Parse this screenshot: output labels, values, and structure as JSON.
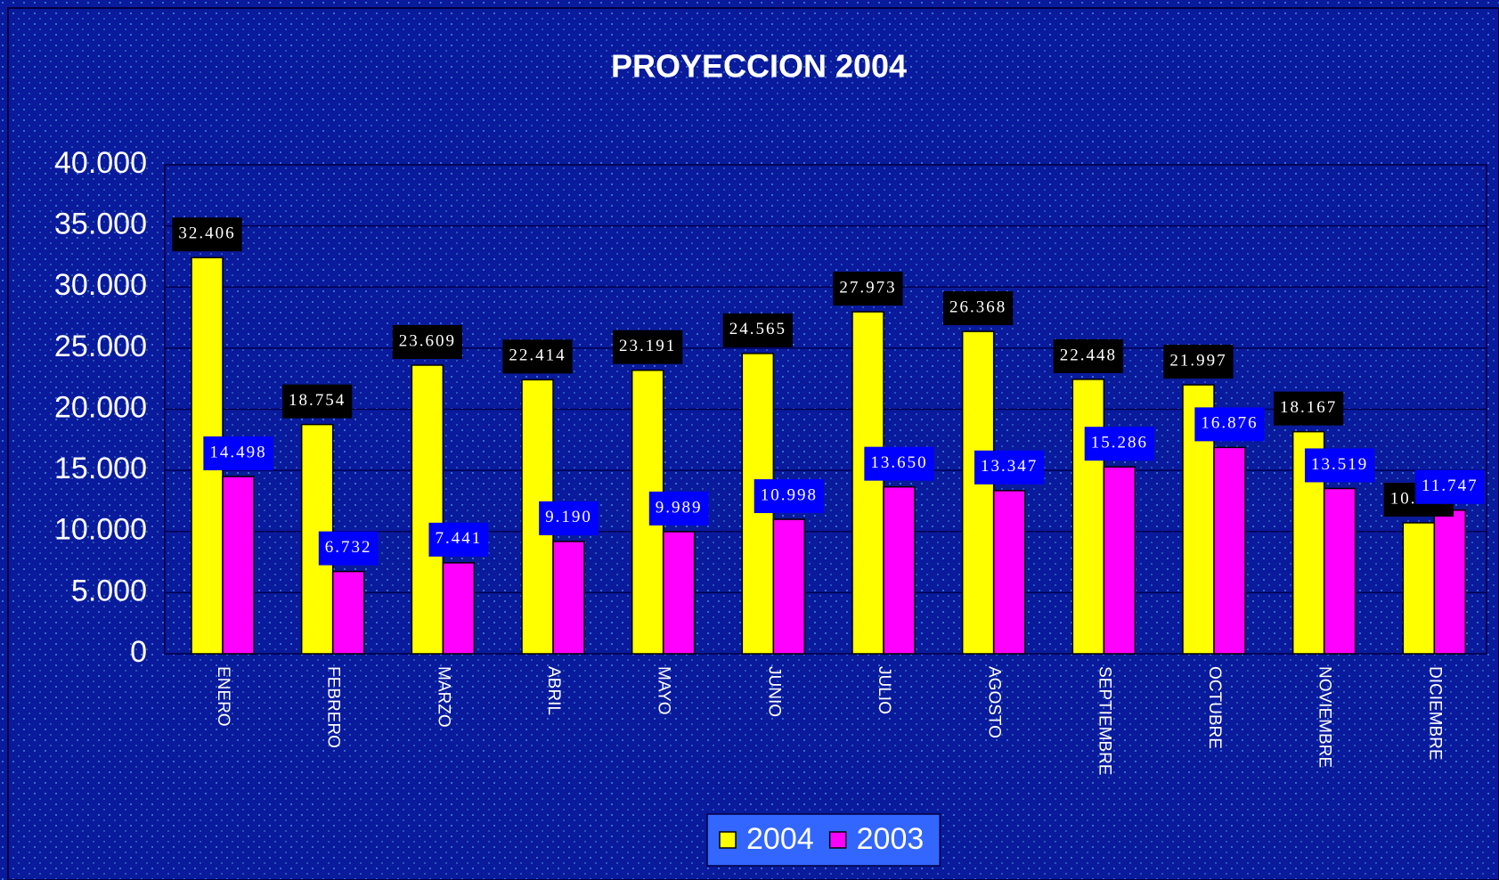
{
  "chart_data": {
    "type": "bar",
    "title": "PROYECCION 2004",
    "categories": [
      "ENERO",
      "FEBRERO",
      "MARZO",
      "ABRIL",
      "MAYO",
      "JUNIO",
      "JULIO",
      "AGOSTO",
      "SEPTIEMBRE",
      "OCTUBRE",
      "NOVIEMBRE",
      "DICIEMBRE"
    ],
    "series": [
      {
        "name": "2004",
        "color": "#ffff00",
        "label_box": "#000000",
        "values": [
          32406,
          18754,
          23609,
          22414,
          23191,
          24565,
          27973,
          26368,
          22448,
          21997,
          18167,
          10713
        ],
        "value_labels": [
          "32.406",
          "18.754",
          "23.609",
          "22.414",
          "23.191",
          "24.565",
          "27.973",
          "26.368",
          "22.448",
          "21.997",
          "18.167",
          "10.713"
        ]
      },
      {
        "name": "2003",
        "color": "#ff00ff",
        "label_box": "#0000ff",
        "values": [
          14498,
          6732,
          7441,
          9190,
          9989,
          10998,
          13650,
          13347,
          15286,
          16876,
          13519,
          11747
        ],
        "value_labels": [
          "14.498",
          "6.732",
          "7.441",
          "9.190",
          "9.989",
          "10.998",
          "13.650",
          "13.347",
          "15.286",
          "16.876",
          "13.519",
          "11.747"
        ]
      }
    ],
    "ylim": [
      0,
      40000
    ],
    "yticks": [
      0,
      {
        "value": 5000,
        "label": "5.000"
      },
      {
        "value": 10000,
        "label": "10.000"
      },
      {
        "value": 15000,
        "label": "15.000"
      },
      {
        "value": 20000,
        "label": "20.000"
      },
      {
        "value": 25000,
        "label": "25.000"
      },
      {
        "value": 30000,
        "label": "30.000"
      },
      {
        "value": 35000,
        "label": "35.000"
      },
      {
        "value": 40000,
        "label": "40.000"
      }
    ],
    "grid": true,
    "legend": "bottom"
  }
}
